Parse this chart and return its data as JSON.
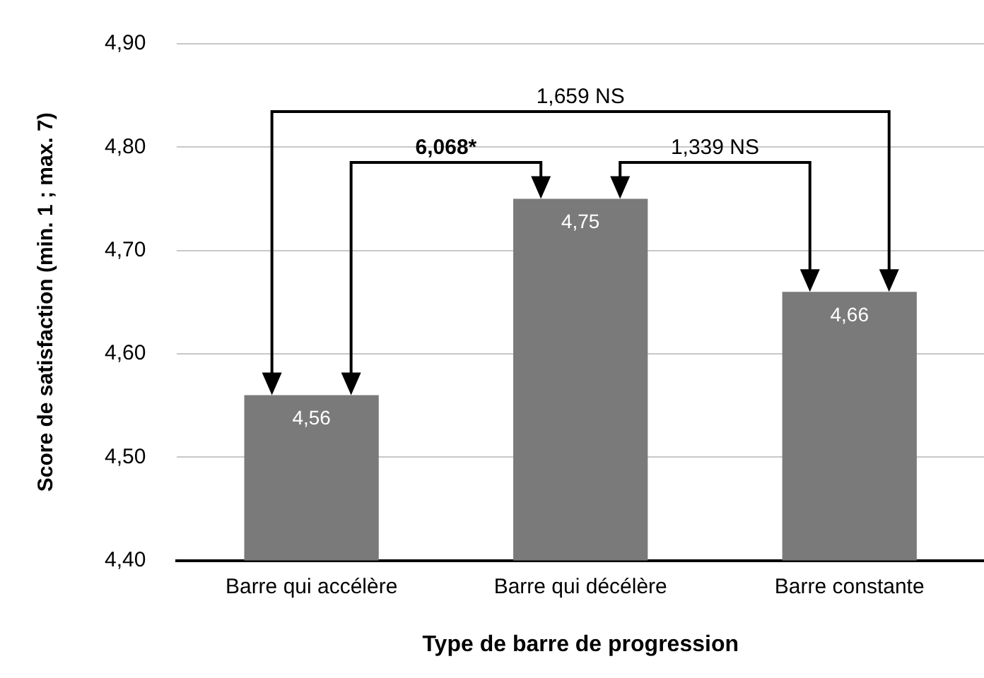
{
  "chart_data": {
    "type": "bar",
    "xlabel": "Type de barre de progression",
    "ylabel": "Score de satisfaction (min. 1 ; max. 7)",
    "categories": [
      "Barre qui accélère",
      "Barre qui décélère",
      "Barre constante"
    ],
    "values": [
      4.56,
      4.75,
      4.66
    ],
    "color": "#7a7a7a",
    "value_labels": [
      "4,56",
      "4,75",
      "4,66"
    ],
    "ylim": [
      4.4,
      4.9
    ],
    "yticks": [
      {
        "value": 4.4,
        "label": "4,40"
      },
      {
        "value": 4.5,
        "label": "4,50"
      },
      {
        "value": 4.6,
        "label": "4,60"
      },
      {
        "value": 4.7,
        "label": "4,70"
      },
      {
        "value": 4.8,
        "label": "4,80"
      },
      {
        "value": 4.9,
        "label": "4,90"
      }
    ],
    "grid": "y",
    "legend": false,
    "annotations": [
      "1,659 NS",
      "6,068*",
      "1,339 NS"
    ]
  }
}
